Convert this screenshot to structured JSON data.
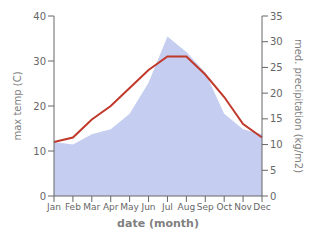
{
  "chart_data": {
    "type": "line",
    "categories": [
      "Jan",
      "Feb",
      "Mar",
      "Apr",
      "May",
      "Jun",
      "Jul",
      "Aug",
      "Sep",
      "Oct",
      "Nov",
      "Dec"
    ],
    "series": [
      {
        "type": "area",
        "axis": "y2",
        "color": "#c5cdf0",
        "values": [
          10.5,
          10,
          12,
          13,
          16,
          22,
          31,
          28,
          24,
          16,
          13,
          12
        ]
      },
      {
        "type": "line",
        "color": "#c0392b",
        "values": [
          12,
          13,
          17,
          20,
          24,
          28,
          31,
          31,
          27,
          22,
          16,
          13
        ]
      }
    ],
    "xlabel": "date (month)",
    "ylabel": "max temp (C)",
    "y2label": "med. precipitation (kg/m2)",
    "ylim": [
      0,
      40
    ],
    "yticks": [
      0,
      10,
      20,
      30,
      40
    ],
    "y2lim": [
      0,
      35
    ],
    "y2ticks": [
      0,
      5,
      10,
      15,
      20,
      25,
      30,
      35
    ],
    "grid": false
  }
}
